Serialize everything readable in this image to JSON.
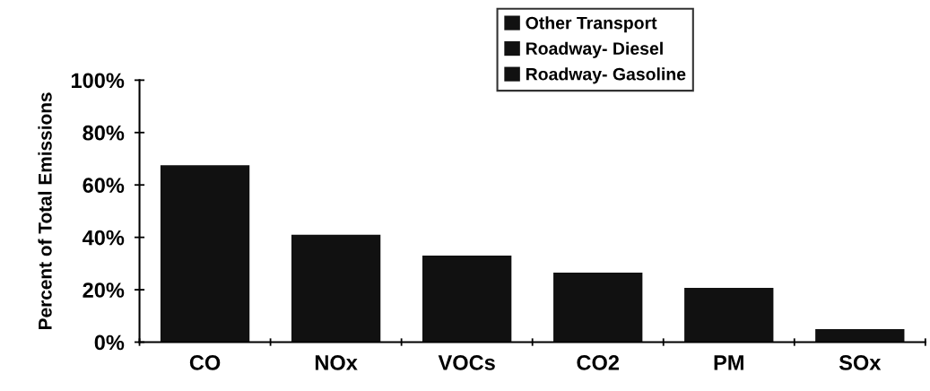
{
  "chart_data": {
    "type": "bar",
    "stacked": true,
    "ylabel": "Percent of Total Emissions",
    "categories": [
      "CO",
      "NOx",
      "VOCs",
      "CO2",
      "PM",
      "SOx"
    ],
    "series": [
      {
        "name": "Roadway- Gasoline",
        "color": "#111111",
        "values": [
          67.5,
          41,
          33,
          26.5,
          20.7,
          5
        ]
      },
      {
        "name": "Roadway- Diesel",
        "color": "#111111",
        "values": [
          null,
          null,
          null,
          null,
          null,
          null
        ]
      },
      {
        "name": "Other Transport",
        "color": "#111111",
        "values": [
          null,
          null,
          null,
          null,
          null,
          null
        ]
      }
    ],
    "ylim": [
      0,
      100
    ],
    "yticks": [
      {
        "value": 0,
        "label": "0%"
      },
      {
        "value": 20,
        "label": "20%"
      },
      {
        "value": 40,
        "label": "40%"
      },
      {
        "value": 60,
        "label": "60%"
      },
      {
        "value": 80,
        "label": "80%"
      },
      {
        "value": 100,
        "label": "100%"
      }
    ],
    "grid": false,
    "legend": "top"
  }
}
